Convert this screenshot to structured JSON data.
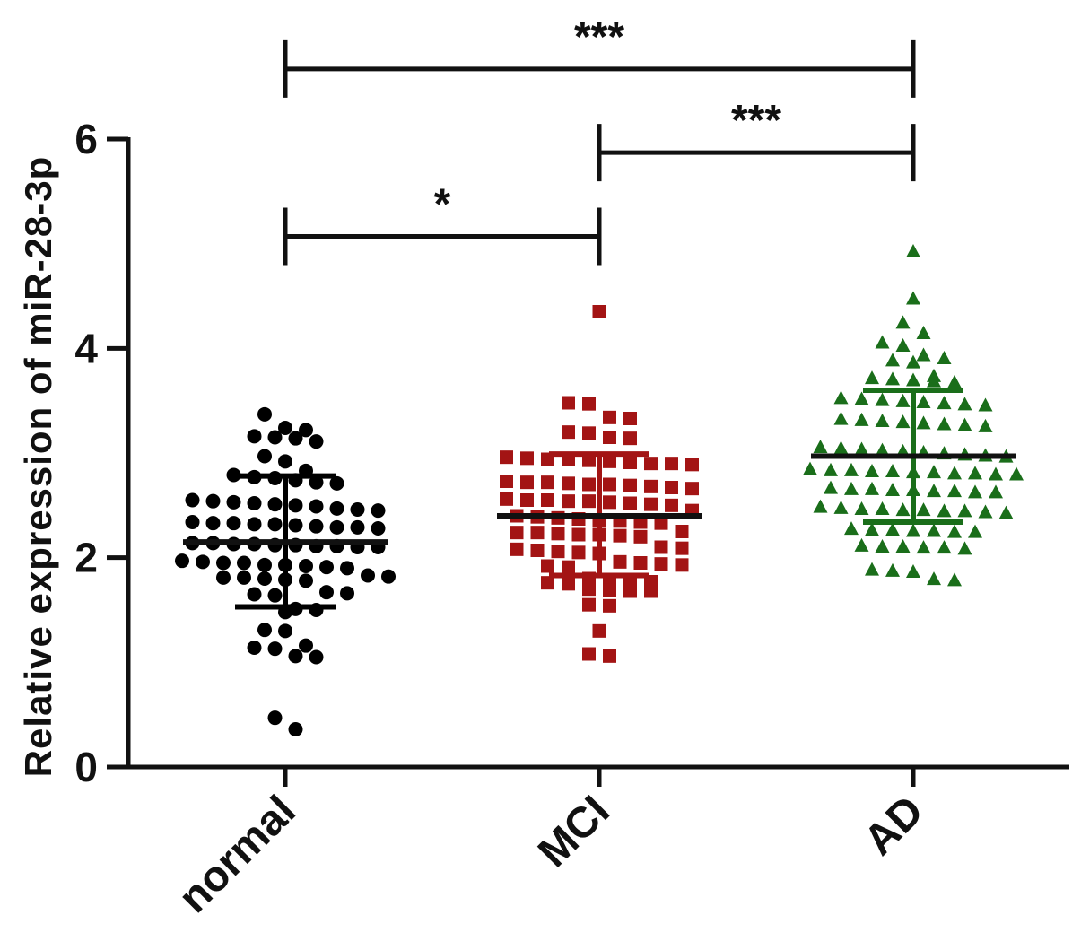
{
  "chart_data": {
    "type": "scatter",
    "title": "",
    "xlabel": "",
    "ylabel": "Relative expression  of  miR-28-3p",
    "ylim": [
      0,
      6
    ],
    "yticks": [
      0,
      2,
      4,
      6
    ],
    "grid": false,
    "categories": [
      "normal",
      "MCI",
      "AD"
    ],
    "series": [
      {
        "category": "normal",
        "marker": "circle",
        "color": "#000000",
        "summary_color": "#000000",
        "mean": 2.15,
        "sd_upper": 2.78,
        "sd_lower": 1.53,
        "values": [
          3.37,
          3.24,
          3.22,
          3.16,
          3.15,
          3.14,
          3.11,
          2.97,
          2.92,
          2.83,
          2.79,
          2.77,
          2.76,
          2.74,
          2.72,
          2.71,
          2.55,
          2.54,
          2.53,
          2.52,
          2.51,
          2.5,
          2.49,
          2.47,
          2.46,
          2.45,
          2.34,
          2.33,
          2.33,
          2.32,
          2.32,
          2.31,
          2.3,
          2.29,
          2.29,
          2.28,
          2.14,
          2.14,
          2.13,
          2.13,
          2.12,
          2.12,
          2.11,
          2.11,
          2.1,
          2.1,
          1.97,
          1.96,
          1.95,
          1.95,
          1.93,
          1.93,
          1.92,
          1.91,
          1.9,
          1.83,
          1.82,
          1.81,
          1.81,
          1.8,
          1.79,
          1.78,
          1.67,
          1.66,
          1.65,
          1.64,
          1.51,
          1.5,
          1.48,
          1.31,
          1.3,
          1.16,
          1.14,
          1.13,
          1.06,
          1.05,
          0.47,
          0.36
        ]
      },
      {
        "category": "MCI",
        "marker": "square",
        "color": "#a31414",
        "summary_color": "#a31414",
        "mean": 2.4,
        "sd_upper": 2.99,
        "sd_lower": 1.83,
        "values": [
          4.35,
          3.48,
          3.47,
          3.34,
          3.33,
          3.2,
          3.19,
          3.15,
          3.14,
          2.96,
          2.95,
          2.94,
          2.94,
          2.93,
          2.92,
          2.91,
          2.9,
          2.9,
          2.89,
          2.73,
          2.72,
          2.72,
          2.71,
          2.7,
          2.7,
          2.69,
          2.68,
          2.67,
          2.66,
          2.56,
          2.55,
          2.55,
          2.54,
          2.54,
          2.53,
          2.52,
          2.51,
          2.5,
          2.45,
          2.4,
          2.39,
          2.38,
          2.37,
          2.36,
          2.35,
          2.34,
          2.33,
          2.25,
          2.24,
          2.24,
          2.23,
          2.22,
          2.22,
          2.21,
          2.2,
          2.1,
          2.09,
          2.08,
          2.07,
          2.06,
          2.05,
          2.04,
          1.96,
          1.95,
          1.94,
          1.93,
          1.92,
          1.91,
          1.8,
          1.79,
          1.78,
          1.77,
          1.76,
          1.75,
          1.7,
          1.69,
          1.68,
          1.68,
          1.55,
          1.54,
          1.3,
          1.08,
          1.06
        ]
      },
      {
        "category": "AD",
        "marker": "triangle",
        "color": "#1a6e1a",
        "summary_color": "#1a6e1a",
        "mean": 2.97,
        "sd_upper": 3.6,
        "sd_lower": 2.34,
        "values": [
          4.92,
          4.47,
          4.24,
          4.14,
          4.05,
          4.02,
          3.93,
          3.9,
          3.88,
          3.86,
          3.73,
          3.71,
          3.7,
          3.69,
          3.68,
          3.67,
          3.52,
          3.51,
          3.5,
          3.49,
          3.48,
          3.47,
          3.46,
          3.45,
          3.32,
          3.31,
          3.3,
          3.29,
          3.28,
          3.27,
          3.26,
          3.25,
          3.05,
          3.04,
          3.03,
          3.02,
          3.01,
          3.0,
          2.99,
          2.98,
          2.97,
          2.96,
          2.84,
          2.83,
          2.83,
          2.82,
          2.82,
          2.81,
          2.81,
          2.8,
          2.8,
          2.79,
          2.79,
          2.66,
          2.65,
          2.65,
          2.64,
          2.64,
          2.63,
          2.63,
          2.62,
          2.62,
          2.48,
          2.47,
          2.46,
          2.46,
          2.45,
          2.45,
          2.44,
          2.44,
          2.43,
          2.42,
          2.27,
          2.26,
          2.26,
          2.25,
          2.25,
          2.24,
          2.24,
          2.11,
          2.1,
          2.1,
          2.09,
          2.09,
          2.08,
          1.88,
          1.87,
          1.86,
          1.79,
          1.78
        ]
      }
    ],
    "comparisons": [
      {
        "from": "normal",
        "to": "AD",
        "label": "***",
        "level": 6.67
      },
      {
        "from": "MCI",
        "to": "AD",
        "label": "***",
        "level": 5.87
      },
      {
        "from": "normal",
        "to": "MCI",
        "label": "*",
        "level": 5.07
      }
    ]
  }
}
